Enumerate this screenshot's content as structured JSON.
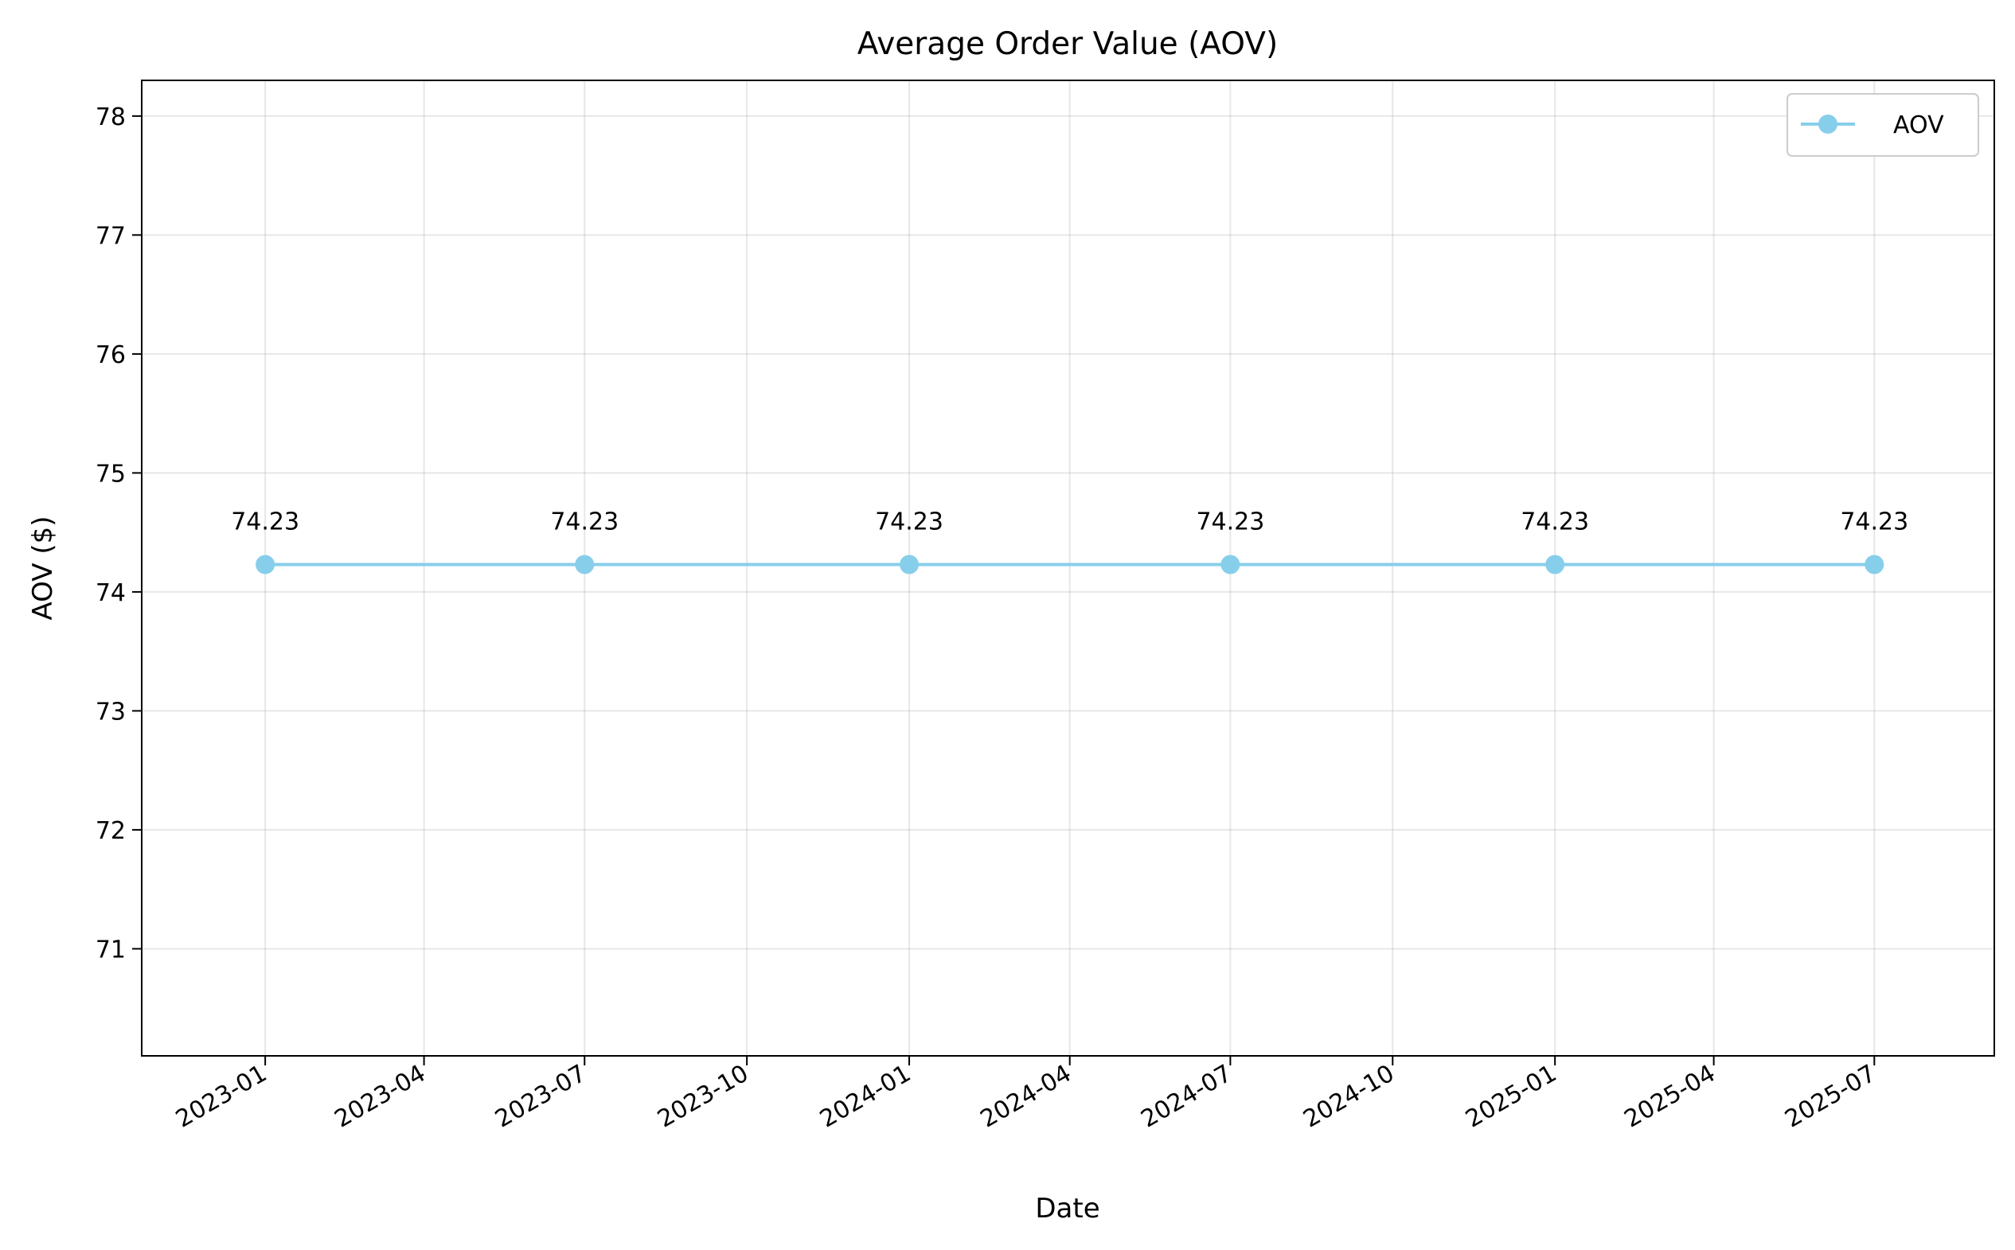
{
  "chart_data": {
    "type": "line",
    "title": "Average Order Value (AOV)",
    "xlabel": "Date",
    "ylabel": "AOV ($)",
    "x": [
      "2023-01-01",
      "2023-07-01",
      "2024-01-01",
      "2024-07-01",
      "2025-01-01",
      "2025-07-01"
    ],
    "series": [
      {
        "name": "AOV",
        "color": "#87ceeb",
        "values": [
          74.23,
          74.23,
          74.23,
          74.23,
          74.23,
          74.23
        ],
        "data_labels": [
          "74.23",
          "74.23",
          "74.23",
          "74.23",
          "74.23",
          "74.23"
        ]
      }
    ],
    "ylim": [
      70.1,
      78.3
    ],
    "xlim": [
      "2022-10-23",
      "2025-09-07"
    ],
    "yticks": [
      71,
      72,
      73,
      74,
      75,
      76,
      77,
      78
    ],
    "yticklabels": [
      "71",
      "72",
      "73",
      "74",
      "75",
      "76",
      "77",
      "78"
    ],
    "xticks": [
      "2023-01-01",
      "2023-04-01",
      "2023-07-01",
      "2023-10-01",
      "2024-01-01",
      "2024-04-01",
      "2024-07-01",
      "2024-10-01",
      "2025-01-01",
      "2025-04-01",
      "2025-07-01"
    ],
    "xticklabels": [
      "2023-01",
      "2023-04",
      "2023-07",
      "2023-10",
      "2024-01",
      "2024-04",
      "2024-07",
      "2024-10",
      "2025-01",
      "2025-04",
      "2025-07"
    ],
    "grid": true,
    "legend_position": "top-right"
  }
}
